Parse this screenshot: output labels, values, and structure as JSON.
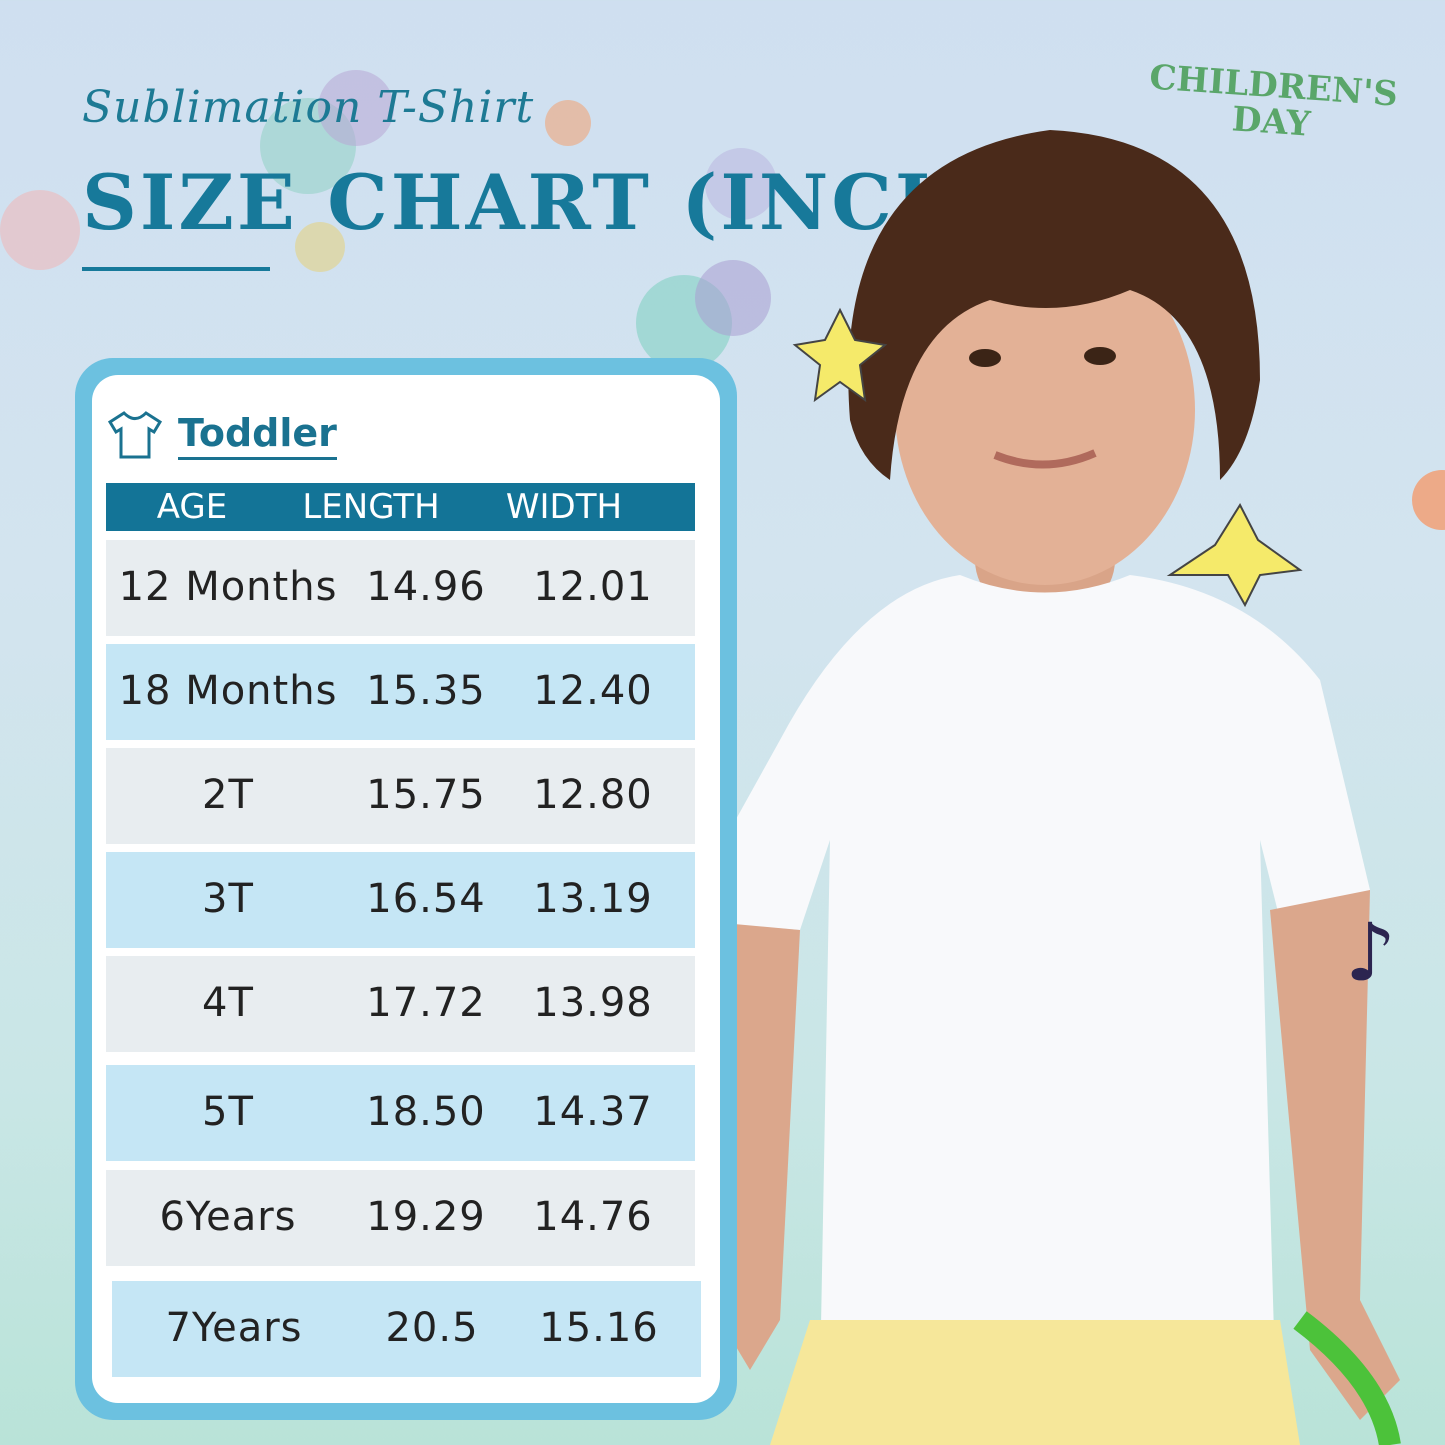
{
  "header": {
    "subtitle": "Sublimation T-Shirt",
    "title": "SIZE CHART (INCH)"
  },
  "badge": {
    "line1": "CHILDREN'S",
    "line2": "DAY"
  },
  "section": {
    "label": "Toddler",
    "icon": "t-shirt-icon"
  },
  "table": {
    "columns": [
      "AGE",
      "LENGTH",
      "WIDTH"
    ],
    "rows": [
      {
        "age": "12 Months",
        "length": "14.96",
        "width": "12.01"
      },
      {
        "age": "18 Months",
        "length": "15.35",
        "width": "12.40"
      },
      {
        "age": "2T",
        "length": "15.75",
        "width": "12.80"
      },
      {
        "age": "3T",
        "length": "16.54",
        "width": "13.19"
      },
      {
        "age": "4T",
        "length": "17.72",
        "width": "13.98"
      },
      {
        "age": "5T",
        "length": "18.50",
        "width": "14.37"
      },
      {
        "age": "6Years",
        "length": "19.29",
        "width": "14.76"
      },
      {
        "age": "7Years",
        "length": "20.5",
        "width": "15.16"
      }
    ]
  },
  "colors": {
    "accent": "#137497",
    "panel": "#6cc1e0",
    "row_gray": "#e8edf0",
    "row_blue": "#c5e6f5",
    "badge": "#5aa66a"
  }
}
